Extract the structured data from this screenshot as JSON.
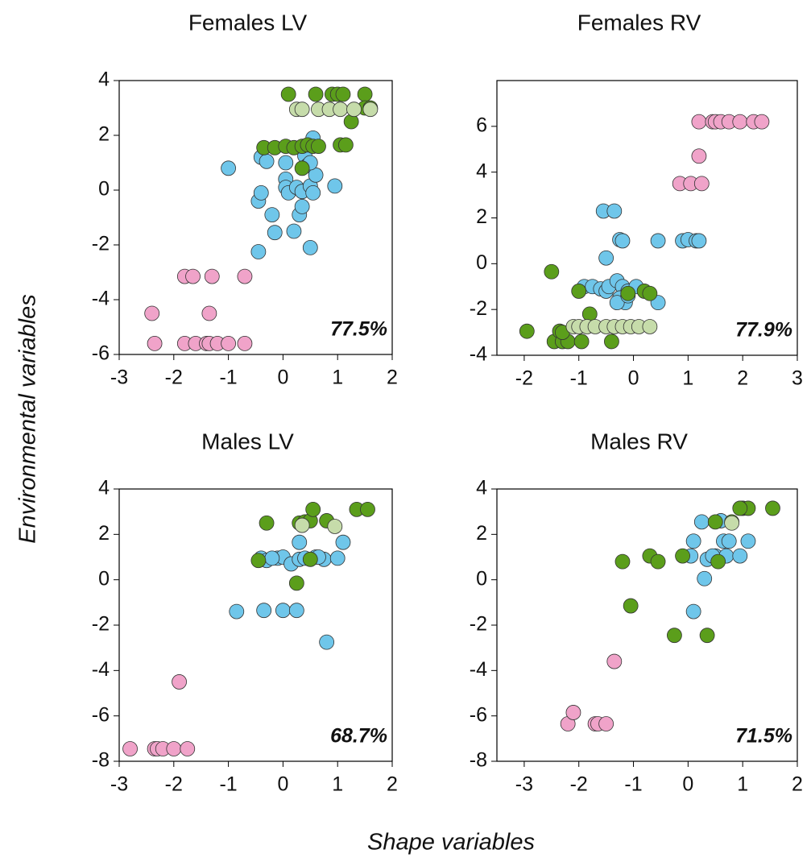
{
  "xlabel": "Shape variables",
  "ylabel": "Environmental variables",
  "chart_data": [
    {
      "type": "scatter",
      "title": "Females LV",
      "annotation": "77.5%",
      "xlim": [
        -3,
        2
      ],
      "xticks": [
        -3,
        -2,
        -1,
        0,
        1,
        2
      ],
      "ylim": [
        -6,
        4
      ],
      "yticks": [
        -6,
        -4,
        -2,
        0,
        2,
        4
      ],
      "series": [
        {
          "color": "#f0a3c9",
          "x": [
            -2.4,
            -2.35,
            -1.8,
            -1.65,
            -1.3,
            -0.7,
            -1.35,
            -1.8,
            -1.6,
            -1.4,
            -1.35,
            -1.2,
            -1.0,
            -0.7
          ],
          "values": [
            -4.5,
            -5.6,
            -3.15,
            -3.15,
            -3.15,
            -3.15,
            -4.5,
            -5.6,
            -5.6,
            -5.6,
            -5.6,
            -5.6,
            -5.6,
            -5.6
          ]
        },
        {
          "color": "#6fc6ea",
          "x": [
            -1.0,
            -0.45,
            -0.4,
            -0.4,
            -0.3,
            -0.2,
            -0.15,
            0.05,
            0.05,
            0.05,
            0.1,
            0.2,
            0.25,
            0.3,
            0.35,
            0.35,
            0.4,
            0.45,
            0.5,
            0.5,
            0.55,
            0.6,
            0.55,
            0.95,
            -0.45,
            0.5
          ],
          "values": [
            0.8,
            -0.4,
            -0.1,
            1.2,
            1.05,
            -0.9,
            -1.55,
            1.0,
            0.4,
            0.1,
            -0.1,
            -1.5,
            0.1,
            -0.9,
            -0.05,
            -0.6,
            1.25,
            0.9,
            0.15,
            -2.1,
            1.9,
            0.55,
            -0.1,
            0.15,
            -2.25,
            1.0
          ]
        },
        {
          "color": "#5b9e1b",
          "x": [
            -0.35,
            -0.15,
            0.05,
            0.1,
            0.2,
            0.35,
            0.35,
            0.45,
            0.55,
            0.6,
            0.65,
            0.9,
            1.0,
            1.05,
            1.1,
            1.15,
            1.25,
            1.5,
            1.5,
            1.6
          ],
          "values": [
            1.55,
            1.55,
            1.6,
            3.5,
            1.55,
            1.6,
            0.8,
            1.65,
            1.6,
            3.5,
            1.6,
            3.5,
            3.5,
            1.65,
            3.5,
            1.65,
            2.5,
            3.5,
            3.0,
            3.0
          ]
        },
        {
          "color": "#c6dcaa",
          "x": [
            0.25,
            0.35,
            0.65,
            0.85,
            1.05,
            1.3,
            1.6
          ],
          "values": [
            2.95,
            2.95,
            2.95,
            2.95,
            2.95,
            2.95,
            2.95
          ]
        }
      ]
    },
    {
      "type": "scatter",
      "title": "Females RV",
      "annotation": "77.9%",
      "xlim": [
        -2.5,
        3
      ],
      "xticks": [
        -2,
        -1,
        0,
        1,
        2,
        3
      ],
      "ylim": [
        -4,
        8
      ],
      "yticks": [
        -4,
        -2,
        0,
        2,
        4,
        6
      ],
      "series": [
        {
          "color": "#f0a3c9",
          "x": [
            1.2,
            1.45,
            1.5,
            1.6,
            1.75,
            1.95,
            2.2,
            2.35,
            1.2,
            0.85,
            1.05,
            1.25
          ],
          "values": [
            6.2,
            6.2,
            6.2,
            6.2,
            6.2,
            6.2,
            6.2,
            6.2,
            4.7,
            3.5,
            3.5,
            3.5
          ]
        },
        {
          "color": "#6fc6ea",
          "x": [
            -0.55,
            -0.35,
            -0.25,
            -0.2,
            0.45,
            0.9,
            1.0,
            1.15,
            1.2,
            -0.5,
            -0.9,
            -0.75,
            -0.6,
            -0.5,
            -0.45,
            -0.3,
            -0.2,
            -0.1,
            0.05,
            -0.25,
            -0.15,
            -0.3,
            0.45,
            -0.1
          ],
          "values": [
            2.3,
            2.3,
            1.05,
            1.0,
            1.0,
            1.0,
            1.05,
            1.0,
            1.0,
            0.25,
            -1.0,
            -1.0,
            -1.1,
            -1.2,
            -1.0,
            -0.75,
            -1.0,
            -1.2,
            -1.0,
            -1.5,
            -1.7,
            -1.7,
            -1.7,
            -1.4
          ]
        },
        {
          "color": "#5b9e1b",
          "x": [
            -1.95,
            -1.5,
            -1.45,
            -1.35,
            -1.3,
            -1.2,
            -1.0,
            -0.95,
            -0.8,
            -0.4,
            -0.1,
            0.2,
            0.3,
            -1.3
          ],
          "values": [
            -2.95,
            -0.35,
            -3.4,
            -2.95,
            -3.4,
            -3.4,
            -1.2,
            -3.4,
            -2.2,
            -3.4,
            -1.3,
            -1.2,
            -1.3,
            -3.0
          ]
        },
        {
          "color": "#c6dcaa",
          "x": [
            -1.1,
            -1.0,
            -0.85,
            -0.7,
            -0.5,
            -0.35,
            -0.2,
            -0.05,
            0.1,
            0.3
          ],
          "values": [
            -2.75,
            -2.75,
            -2.75,
            -2.75,
            -2.75,
            -2.75,
            -2.75,
            -2.75,
            -2.75,
            -2.75
          ]
        }
      ]
    },
    {
      "type": "scatter",
      "title": "Males LV",
      "annotation": "68.7%",
      "xlim": [
        -3,
        2
      ],
      "xticks": [
        -3,
        -2,
        -1,
        0,
        1,
        2
      ],
      "ylim": [
        -8,
        4
      ],
      "yticks": [
        -8,
        -6,
        -4,
        -2,
        0,
        2,
        4
      ],
      "series": [
        {
          "color": "#f0a3c9",
          "x": [
            -2.8,
            -2.35,
            -2.3,
            -2.2,
            -2.0,
            -1.75,
            -1.9
          ],
          "values": [
            -7.45,
            -7.45,
            -7.45,
            -7.45,
            -7.45,
            -7.45,
            -4.5
          ]
        },
        {
          "color": "#6fc6ea",
          "x": [
            -0.85,
            -0.35,
            0.0,
            0.25,
            0.8,
            -0.4,
            -0.3,
            -0.1,
            0.0,
            0.15,
            0.3,
            0.4,
            0.6,
            0.75,
            1.0,
            0.3,
            0.65,
            1.1,
            -0.2
          ],
          "values": [
            -1.4,
            -1.35,
            -1.35,
            -1.35,
            -2.75,
            0.95,
            0.85,
            0.95,
            1.0,
            0.7,
            0.9,
            0.95,
            1.0,
            0.9,
            0.95,
            1.65,
            1.0,
            1.65,
            0.95
          ]
        },
        {
          "color": "#5b9e1b",
          "x": [
            -0.3,
            -0.45,
            0.25,
            0.3,
            0.4,
            0.5,
            0.55,
            0.8,
            1.35,
            1.55,
            0.5
          ],
          "values": [
            2.5,
            0.85,
            -0.15,
            2.5,
            2.55,
            2.6,
            3.1,
            2.6,
            3.1,
            3.1,
            0.9
          ]
        },
        {
          "color": "#c6dcaa",
          "x": [
            0.35,
            0.95
          ],
          "values": [
            2.4,
            2.35
          ]
        }
      ]
    },
    {
      "type": "scatter",
      "title": "Males RV",
      "annotation": "71.5%",
      "xlim": [
        -3.5,
        2
      ],
      "xticks": [
        -3,
        -2,
        -1,
        0,
        1,
        2
      ],
      "ylim": [
        -8,
        4
      ],
      "yticks": [
        -8,
        -6,
        -4,
        -2,
        0,
        2,
        4
      ],
      "series": [
        {
          "color": "#f0a3c9",
          "x": [
            -2.2,
            -2.1,
            -1.7,
            -1.65,
            -1.5,
            -1.35
          ],
          "values": [
            -6.35,
            -5.85,
            -6.35,
            -6.35,
            -6.35,
            -3.6
          ]
        },
        {
          "color": "#6fc6ea",
          "x": [
            0.05,
            0.1,
            0.1,
            0.25,
            0.3,
            0.35,
            0.5,
            0.6,
            0.65,
            0.7,
            0.75,
            0.95,
            1.1,
            0.45
          ],
          "values": [
            1.05,
            1.7,
            -1.4,
            2.55,
            0.05,
            0.9,
            1.05,
            2.6,
            1.7,
            1.05,
            1.7,
            1.05,
            1.7,
            1.05
          ]
        },
        {
          "color": "#5b9e1b",
          "x": [
            -1.2,
            -1.05,
            -0.7,
            -0.55,
            -0.25,
            -0.1,
            0.35,
            0.5,
            0.55,
            0.8,
            1.0,
            1.1,
            1.55,
            0.95
          ],
          "values": [
            0.8,
            -1.15,
            1.05,
            0.8,
            -2.45,
            1.05,
            -2.45,
            2.55,
            0.8,
            2.55,
            3.15,
            3.15,
            3.15,
            3.15
          ]
        },
        {
          "color": "#c6dcaa",
          "x": [
            0.8
          ],
          "values": [
            2.5
          ]
        }
      ]
    }
  ]
}
